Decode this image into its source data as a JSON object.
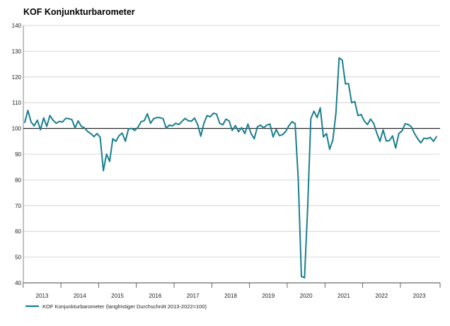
{
  "chart_data": {
    "type": "line",
    "title": "KOF Konjunkturbarometer",
    "xlabel": "",
    "ylabel": "",
    "ylim": [
      40,
      140
    ],
    "yticks": [
      40,
      50,
      60,
      70,
      80,
      90,
      100,
      110,
      120,
      130,
      140
    ],
    "year_labels": [
      "2013",
      "2014",
      "2015",
      "2016",
      "2017",
      "2018",
      "2019",
      "2020",
      "2021",
      "2022",
      "2023"
    ],
    "x_start": "2013-01",
    "reference_line": 100,
    "grid": "horizontal",
    "legend_position": "bottom-left",
    "colors": {
      "series": "#1a7f8e",
      "reference": "#000000",
      "grid": "#cccccc"
    },
    "series": [
      {
        "name": "KOF Konjunkturbarometer (langfristiger Durchschnitt 2013-2022=100)",
        "values": [
          102.3,
          107.0,
          102.5,
          101.0,
          103.2,
          99.5,
          104.1,
          100.8,
          105.0,
          103.2,
          102.0,
          102.7,
          102.5,
          103.9,
          103.8,
          103.4,
          100.2,
          102.9,
          100.8,
          100.2,
          98.8,
          98.0,
          96.8,
          98.0,
          96.5,
          83.6,
          90.0,
          87.2,
          96.0,
          95.0,
          97.2,
          98.2,
          95.0,
          99.8,
          100.0,
          99.2,
          100.4,
          102.6,
          103.0,
          105.7,
          102.0,
          103.8,
          104.2,
          104.2,
          103.8,
          100.1,
          101.3,
          101.0,
          102.0,
          101.5,
          102.7,
          103.9,
          103.0,
          102.8,
          104.0,
          101.5,
          97.0,
          102.0,
          105.0,
          104.5,
          105.9,
          105.6,
          102.0,
          101.4,
          103.6,
          102.9,
          99.2,
          101.1,
          98.7,
          100.3,
          98.0,
          101.7,
          98.0,
          96.0,
          100.6,
          101.3,
          100.2,
          101.3,
          101.7,
          96.7,
          99.6,
          97.2,
          97.6,
          98.8,
          101.0,
          102.6,
          101.9,
          80.3,
          42.5,
          42.0,
          69.0,
          103.8,
          106.7,
          104.2,
          108.0,
          96.7,
          98.0,
          91.9,
          95.5,
          106.0,
          127.4,
          126.5,
          117.3,
          117.4,
          110.0,
          110.4,
          105.0,
          105.4,
          102.9,
          101.5,
          103.6,
          102.0,
          98.1,
          95.0,
          99.4,
          95.1,
          95.3,
          97.1,
          92.4,
          98.0,
          99.0,
          101.8,
          101.5,
          100.6,
          98.0,
          96.0,
          94.4,
          96.2,
          96.0,
          96.5,
          95.0,
          96.8
        ]
      }
    ]
  }
}
